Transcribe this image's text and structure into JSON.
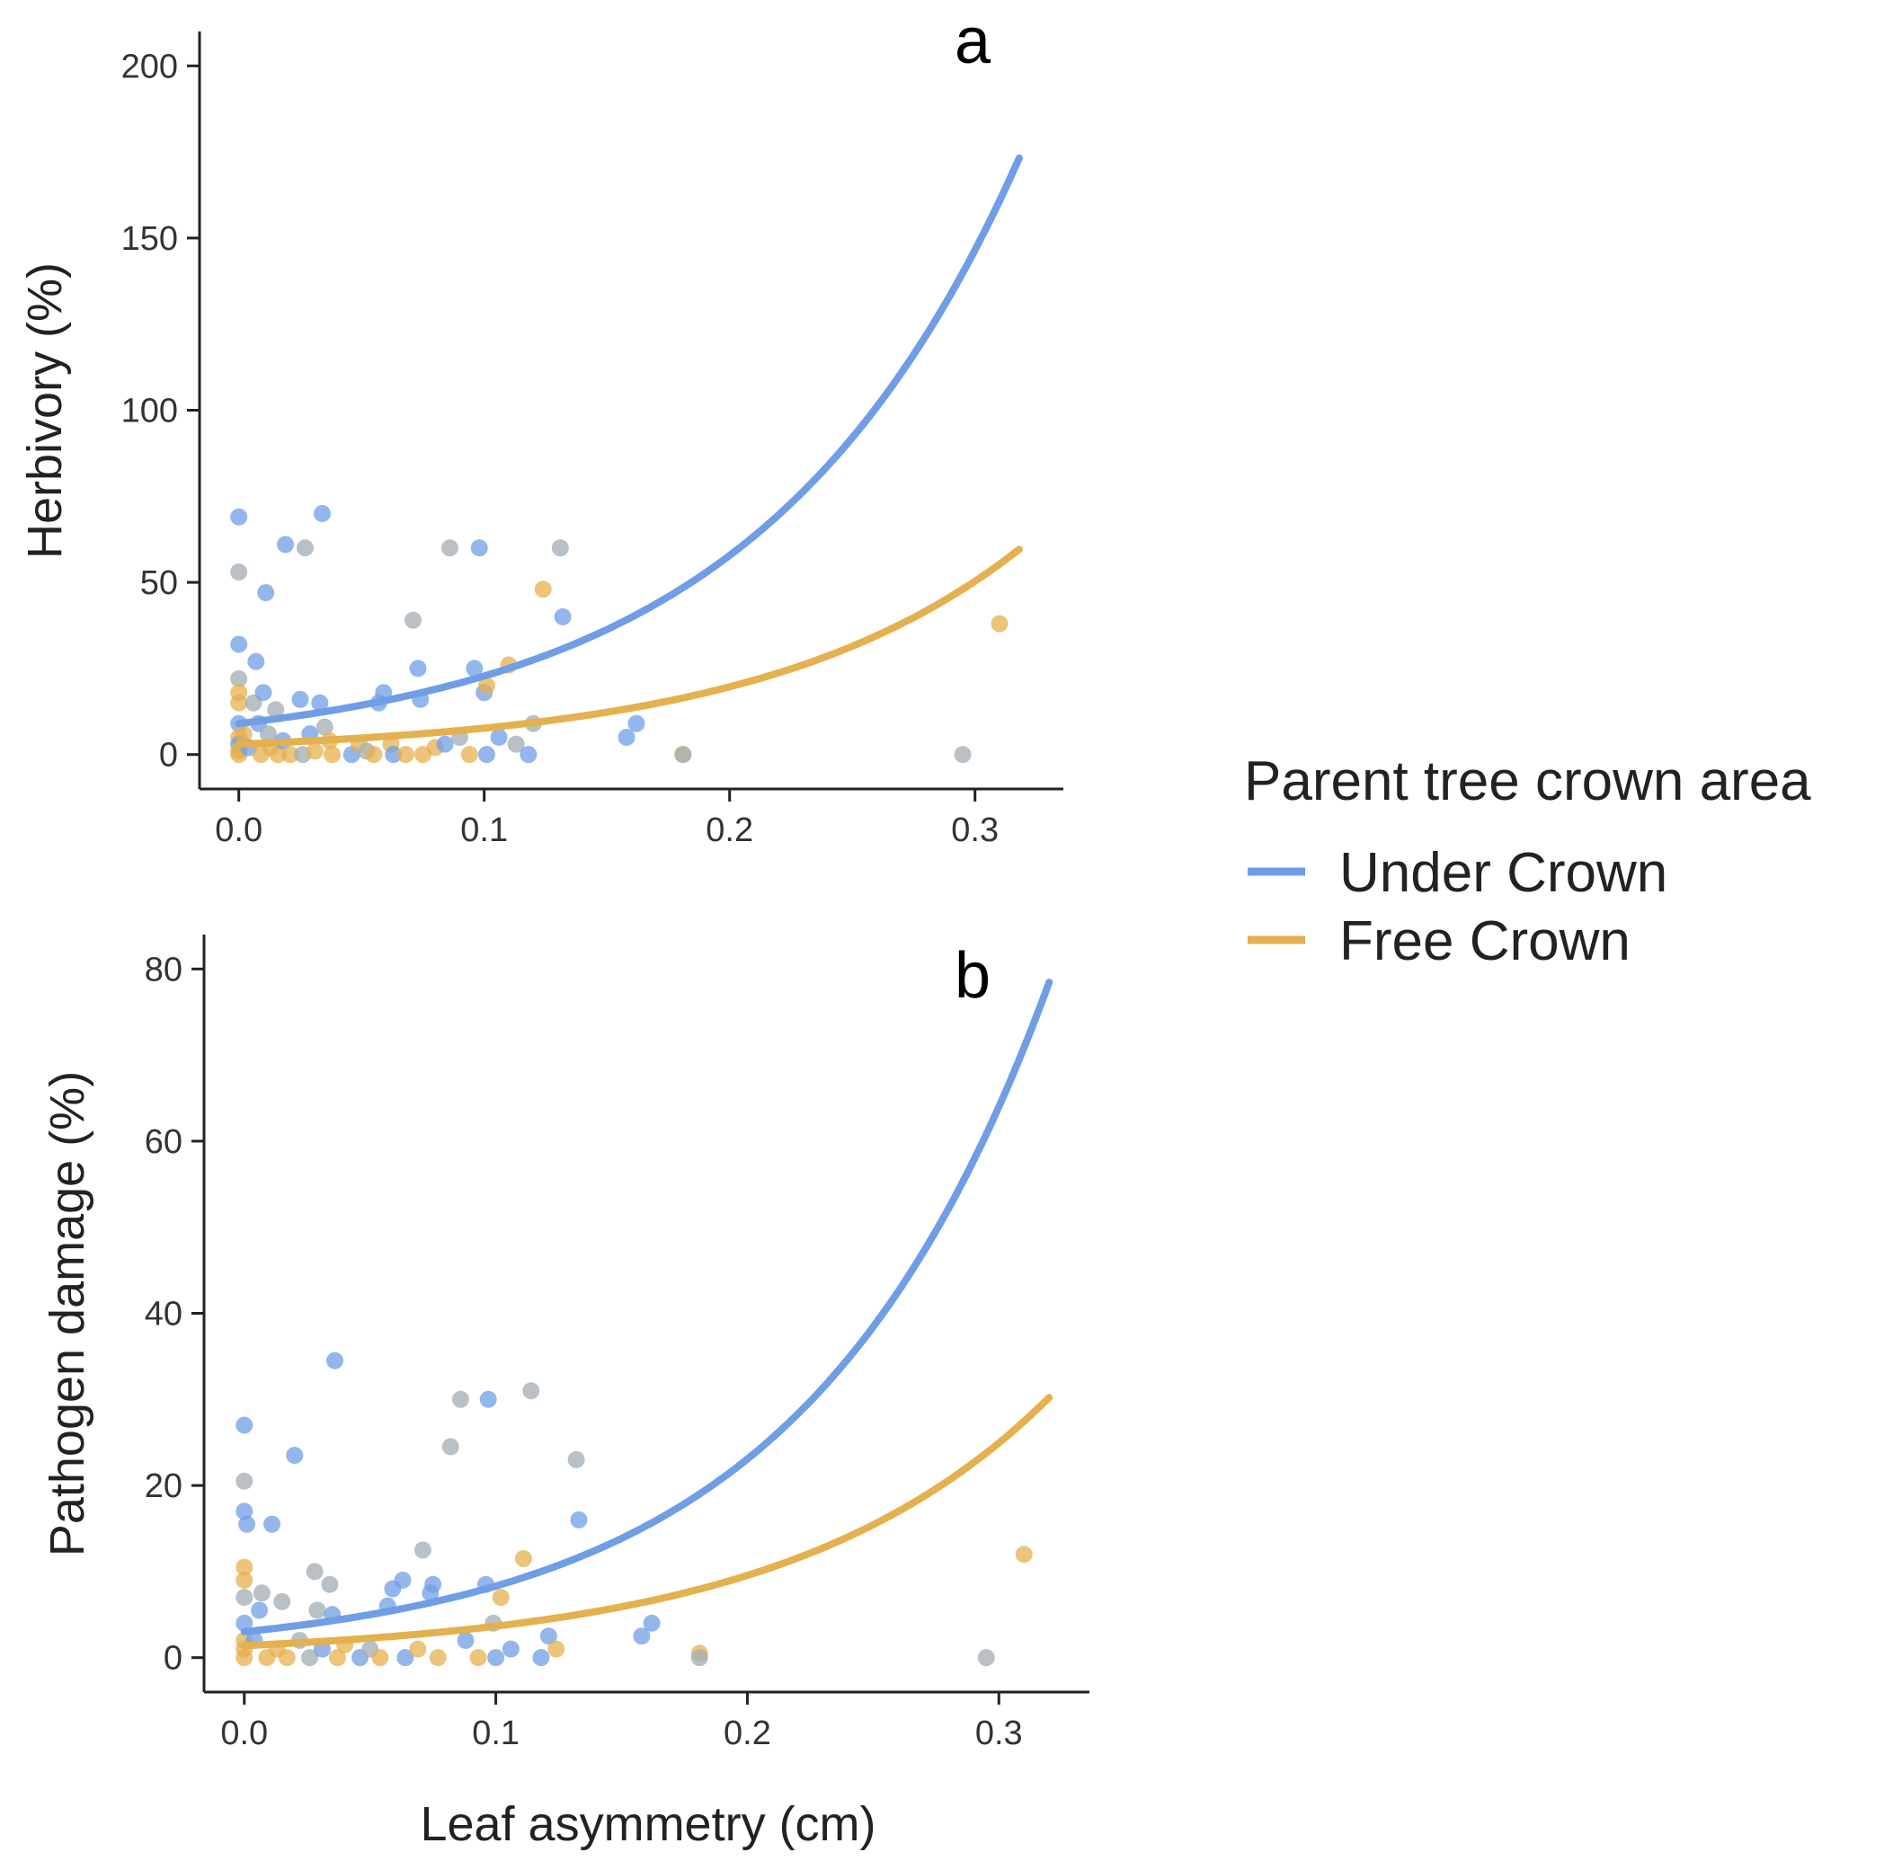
{
  "chart_data": [
    {
      "type": "scatter",
      "panel_label": "a",
      "xlabel": "",
      "ylabel": "Herbivory (%)",
      "xlim": [
        -0.016,
        0.336
      ],
      "ylim": [
        -10,
        210
      ],
      "x_ticks": [
        "0.0",
        "0.1",
        "0.2",
        "0.3"
      ],
      "y_ticks": [
        "0",
        "50",
        "100",
        "150",
        "200"
      ],
      "series": [
        {
          "name": "Under Crown",
          "color": "#6f9de6",
          "curve": {
            "a": 9.0,
            "b": 9.3,
            "x_from": 0.0,
            "x_to": 0.318
          }
        },
        {
          "name": "Free Crown",
          "color": "#e5b04e",
          "curve": {
            "a": 3.0,
            "b": 9.4,
            "x_from": 0.0,
            "x_to": 0.318
          }
        }
      ],
      "points": [
        {
          "x": 0.0,
          "y": 69,
          "g": "under"
        },
        {
          "x": 0.0,
          "y": 53,
          "g": "mixed"
        },
        {
          "x": 0.0,
          "y": 32,
          "g": "under"
        },
        {
          "x": 0.0,
          "y": 22,
          "g": "mixed"
        },
        {
          "x": 0.0,
          "y": 18,
          "g": "free"
        },
        {
          "x": 0.0,
          "y": 15,
          "g": "free"
        },
        {
          "x": 0.0,
          "y": 9,
          "g": "under"
        },
        {
          "x": 0.0,
          "y": 5,
          "g": "free"
        },
        {
          "x": 0.0,
          "y": 3,
          "g": "under"
        },
        {
          "x": 0.0,
          "y": 1,
          "g": "free"
        },
        {
          "x": 0.0,
          "y": 0,
          "g": "free"
        },
        {
          "x": 0.002,
          "y": 6,
          "g": "free"
        },
        {
          "x": 0.004,
          "y": 2,
          "g": "under"
        },
        {
          "x": 0.006,
          "y": 15,
          "g": "mixed"
        },
        {
          "x": 0.007,
          "y": 27,
          "g": "under"
        },
        {
          "x": 0.008,
          "y": 9,
          "g": "under"
        },
        {
          "x": 0.009,
          "y": 0,
          "g": "free"
        },
        {
          "x": 0.01,
          "y": 18,
          "g": "under"
        },
        {
          "x": 0.011,
          "y": 47,
          "g": "under"
        },
        {
          "x": 0.012,
          "y": 6,
          "g": "mixed"
        },
        {
          "x": 0.013,
          "y": 2,
          "g": "free"
        },
        {
          "x": 0.015,
          "y": 13,
          "g": "mixed"
        },
        {
          "x": 0.016,
          "y": 0,
          "g": "free"
        },
        {
          "x": 0.018,
          "y": 4,
          "g": "under"
        },
        {
          "x": 0.019,
          "y": 61,
          "g": "under"
        },
        {
          "x": 0.021,
          "y": 0,
          "g": "free"
        },
        {
          "x": 0.025,
          "y": 16,
          "g": "under"
        },
        {
          "x": 0.026,
          "y": 0,
          "g": "mixed"
        },
        {
          "x": 0.027,
          "y": 60,
          "g": "mixed"
        },
        {
          "x": 0.029,
          "y": 6,
          "g": "under"
        },
        {
          "x": 0.031,
          "y": 1,
          "g": "free"
        },
        {
          "x": 0.033,
          "y": 15,
          "g": "under"
        },
        {
          "x": 0.034,
          "y": 70,
          "g": "under"
        },
        {
          "x": 0.035,
          "y": 8,
          "g": "mixed"
        },
        {
          "x": 0.037,
          "y": 4,
          "g": "free"
        },
        {
          "x": 0.038,
          "y": 0,
          "g": "free"
        },
        {
          "x": 0.046,
          "y": 0,
          "g": "under"
        },
        {
          "x": 0.049,
          "y": 3,
          "g": "free"
        },
        {
          "x": 0.052,
          "y": 1,
          "g": "mixed"
        },
        {
          "x": 0.055,
          "y": 0,
          "g": "free"
        },
        {
          "x": 0.057,
          "y": 15,
          "g": "under"
        },
        {
          "x": 0.059,
          "y": 18,
          "g": "under"
        },
        {
          "x": 0.062,
          "y": 3,
          "g": "free"
        },
        {
          "x": 0.063,
          "y": 0,
          "g": "under"
        },
        {
          "x": 0.068,
          "y": 0,
          "g": "free"
        },
        {
          "x": 0.071,
          "y": 39,
          "g": "mixed"
        },
        {
          "x": 0.073,
          "y": 25,
          "g": "under"
        },
        {
          "x": 0.074,
          "y": 16,
          "g": "under"
        },
        {
          "x": 0.075,
          "y": 0,
          "g": "free"
        },
        {
          "x": 0.08,
          "y": 2,
          "g": "free"
        },
        {
          "x": 0.084,
          "y": 3,
          "g": "under"
        },
        {
          "x": 0.086,
          "y": 60,
          "g": "mixed"
        },
        {
          "x": 0.09,
          "y": 5,
          "g": "mixed"
        },
        {
          "x": 0.094,
          "y": 0,
          "g": "free"
        },
        {
          "x": 0.096,
          "y": 25,
          "g": "under"
        },
        {
          "x": 0.098,
          "y": 60,
          "g": "under"
        },
        {
          "x": 0.1,
          "y": 18,
          "g": "under"
        },
        {
          "x": 0.101,
          "y": 20,
          "g": "free"
        },
        {
          "x": 0.101,
          "y": 0,
          "g": "under"
        },
        {
          "x": 0.106,
          "y": 5,
          "g": "under"
        },
        {
          "x": 0.11,
          "y": 26,
          "g": "free"
        },
        {
          "x": 0.113,
          "y": 3,
          "g": "mixed"
        },
        {
          "x": 0.118,
          "y": 0,
          "g": "under"
        },
        {
          "x": 0.12,
          "y": 9,
          "g": "mixed"
        },
        {
          "x": 0.124,
          "y": 48,
          "g": "free"
        },
        {
          "x": 0.131,
          "y": 60,
          "g": "mixed"
        },
        {
          "x": 0.132,
          "y": 40,
          "g": "under"
        },
        {
          "x": 0.158,
          "y": 5,
          "g": "under"
        },
        {
          "x": 0.162,
          "y": 9,
          "g": "under"
        },
        {
          "x": 0.181,
          "y": 0,
          "g": "free"
        },
        {
          "x": 0.181,
          "y": 0,
          "g": "mixed"
        },
        {
          "x": 0.295,
          "y": 0,
          "g": "mixed"
        },
        {
          "x": 0.31,
          "y": 38,
          "g": "free"
        }
      ]
    },
    {
      "type": "scatter",
      "panel_label": "b",
      "xlabel": "Leaf asymmetry (cm)",
      "ylabel": "Pathogen damage (%)",
      "xlim": [
        -0.016,
        0.336
      ],
      "ylim": [
        -4,
        84
      ],
      "x_ticks": [
        "0.0",
        "0.1",
        "0.2",
        "0.3"
      ],
      "y_ticks": [
        "0",
        "20",
        "40",
        "60",
        "80"
      ],
      "series": [
        {
          "name": "Under Crown",
          "color": "#6f9de6",
          "curve": {
            "a": 3.0,
            "b": 10.2,
            "x_from": 0.0,
            "x_to": 0.32
          }
        },
        {
          "name": "Free Crown",
          "color": "#e5b04e",
          "curve": {
            "a": 1.4,
            "b": 9.6,
            "x_from": 0.0,
            "x_to": 0.32
          }
        }
      ],
      "points": [
        {
          "x": 0.0,
          "y": 27,
          "g": "under"
        },
        {
          "x": 0.0,
          "y": 20.5,
          "g": "mixed"
        },
        {
          "x": 0.0,
          "y": 17,
          "g": "under"
        },
        {
          "x": 0.001,
          "y": 15.5,
          "g": "under"
        },
        {
          "x": 0.0,
          "y": 10.5,
          "g": "free"
        },
        {
          "x": 0.0,
          "y": 9,
          "g": "free"
        },
        {
          "x": 0.0,
          "y": 7,
          "g": "mixed"
        },
        {
          "x": 0.0,
          "y": 4,
          "g": "under"
        },
        {
          "x": 0.0,
          "y": 2,
          "g": "free"
        },
        {
          "x": 0.0,
          "y": 1,
          "g": "free"
        },
        {
          "x": 0.0,
          "y": 0,
          "g": "free"
        },
        {
          "x": 0.004,
          "y": 2,
          "g": "under"
        },
        {
          "x": 0.006,
          "y": 5.5,
          "g": "under"
        },
        {
          "x": 0.007,
          "y": 7.5,
          "g": "mixed"
        },
        {
          "x": 0.009,
          "y": 0,
          "g": "free"
        },
        {
          "x": 0.011,
          "y": 15.5,
          "g": "under"
        },
        {
          "x": 0.013,
          "y": 1,
          "g": "free"
        },
        {
          "x": 0.015,
          "y": 6.5,
          "g": "mixed"
        },
        {
          "x": 0.017,
          "y": 0,
          "g": "free"
        },
        {
          "x": 0.02,
          "y": 23.5,
          "g": "under"
        },
        {
          "x": 0.022,
          "y": 2,
          "g": "mixed"
        },
        {
          "x": 0.026,
          "y": 0,
          "g": "mixed"
        },
        {
          "x": 0.028,
          "y": 10,
          "g": "mixed"
        },
        {
          "x": 0.029,
          "y": 5.5,
          "g": "mixed"
        },
        {
          "x": 0.031,
          "y": 1,
          "g": "under"
        },
        {
          "x": 0.034,
          "y": 8.5,
          "g": "mixed"
        },
        {
          "x": 0.035,
          "y": 5,
          "g": "under"
        },
        {
          "x": 0.036,
          "y": 34.5,
          "g": "under"
        },
        {
          "x": 0.037,
          "y": 0,
          "g": "free"
        },
        {
          "x": 0.04,
          "y": 1.5,
          "g": "free"
        },
        {
          "x": 0.046,
          "y": 0,
          "g": "under"
        },
        {
          "x": 0.05,
          "y": 1,
          "g": "mixed"
        },
        {
          "x": 0.054,
          "y": 0,
          "g": "free"
        },
        {
          "x": 0.057,
          "y": 6,
          "g": "under"
        },
        {
          "x": 0.059,
          "y": 8,
          "g": "under"
        },
        {
          "x": 0.063,
          "y": 9,
          "g": "under"
        },
        {
          "x": 0.064,
          "y": 0,
          "g": "under"
        },
        {
          "x": 0.069,
          "y": 1,
          "g": "free"
        },
        {
          "x": 0.071,
          "y": 12.5,
          "g": "mixed"
        },
        {
          "x": 0.074,
          "y": 7.5,
          "g": "under"
        },
        {
          "x": 0.075,
          "y": 8.5,
          "g": "under"
        },
        {
          "x": 0.077,
          "y": 0,
          "g": "free"
        },
        {
          "x": 0.082,
          "y": 24.5,
          "g": "mixed"
        },
        {
          "x": 0.086,
          "y": 30,
          "g": "mixed"
        },
        {
          "x": 0.088,
          "y": 2,
          "g": "under"
        },
        {
          "x": 0.093,
          "y": 0,
          "g": "free"
        },
        {
          "x": 0.096,
          "y": 8.5,
          "g": "under"
        },
        {
          "x": 0.097,
          "y": 30,
          "g": "under"
        },
        {
          "x": 0.099,
          "y": 4,
          "g": "mixed"
        },
        {
          "x": 0.1,
          "y": 0,
          "g": "under"
        },
        {
          "x": 0.102,
          "y": 7,
          "g": "free"
        },
        {
          "x": 0.106,
          "y": 1,
          "g": "under"
        },
        {
          "x": 0.111,
          "y": 11.5,
          "g": "free"
        },
        {
          "x": 0.114,
          "y": 31,
          "g": "mixed"
        },
        {
          "x": 0.118,
          "y": 0,
          "g": "under"
        },
        {
          "x": 0.121,
          "y": 2.5,
          "g": "under"
        },
        {
          "x": 0.124,
          "y": 1,
          "g": "free"
        },
        {
          "x": 0.132,
          "y": 23,
          "g": "mixed"
        },
        {
          "x": 0.133,
          "y": 16,
          "g": "under"
        },
        {
          "x": 0.158,
          "y": 2.5,
          "g": "under"
        },
        {
          "x": 0.162,
          "y": 4,
          "g": "under"
        },
        {
          "x": 0.181,
          "y": 0.5,
          "g": "free"
        },
        {
          "x": 0.181,
          "y": 0,
          "g": "mixed"
        },
        {
          "x": 0.295,
          "y": 0,
          "g": "mixed"
        },
        {
          "x": 0.31,
          "y": 12,
          "g": "free"
        }
      ]
    }
  ],
  "legend": {
    "title": "Parent tree crown area",
    "items": [
      {
        "label": "Under Crown",
        "color": "#6f9de6"
      },
      {
        "label": "Free Crown",
        "color": "#e5b04e"
      }
    ]
  },
  "colors": {
    "under_point": "#6f9de6",
    "free_point": "#e5b04e",
    "mixed_point": "#a8b0b8"
  }
}
